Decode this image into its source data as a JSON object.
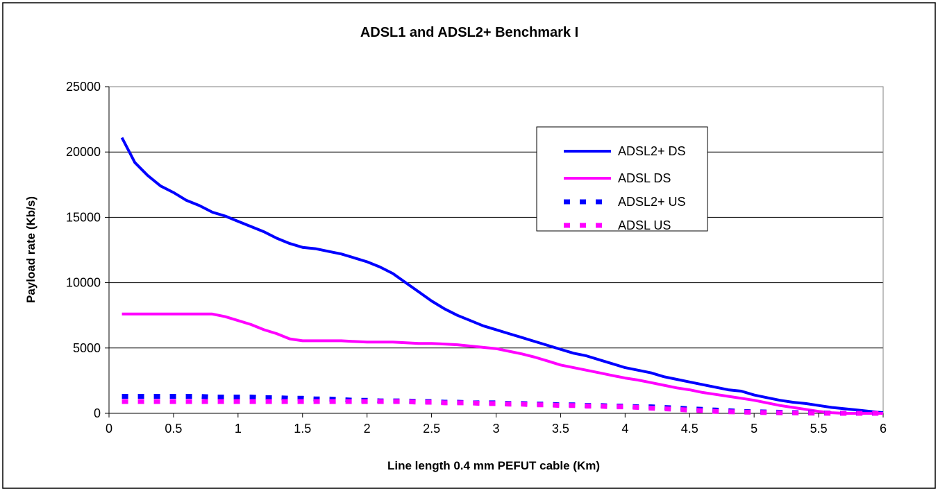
{
  "chart_data": {
    "type": "line",
    "title": "ADSL1 and ADSL2+ Benchmark I",
    "xlabel": "Line length 0.4 mm PEFUT cable (Km)",
    "ylabel": "Payload rate (Kb/s)",
    "xlim": [
      0,
      6
    ],
    "ylim": [
      0,
      25000
    ],
    "xticks": [
      0,
      0.5,
      1,
      1.5,
      2,
      2.5,
      3,
      3.5,
      4,
      4.5,
      5,
      5.5,
      6
    ],
    "xtick_labels": [
      "0",
      "0.5",
      "1",
      "1.5",
      "2",
      "2.5",
      "3",
      "3.5",
      "4",
      "4.5",
      "5",
      "5.5",
      "6"
    ],
    "yticks": [
      0,
      5000,
      10000,
      15000,
      20000,
      25000
    ],
    "ytick_labels": [
      "0",
      "5000",
      "10000",
      "15000",
      "20000",
      "25000"
    ],
    "grid": "horizontal",
    "legend_position": "top-right",
    "x": [
      0.1,
      0.2,
      0.3,
      0.4,
      0.5,
      0.6,
      0.7,
      0.8,
      0.9,
      1.0,
      1.1,
      1.2,
      1.3,
      1.4,
      1.5,
      1.6,
      1.7,
      1.8,
      1.9,
      2.0,
      2.1,
      2.2,
      2.3,
      2.4,
      2.5,
      2.6,
      2.7,
      2.8,
      2.9,
      3.0,
      3.1,
      3.2,
      3.3,
      3.4,
      3.5,
      3.6,
      3.7,
      3.8,
      3.9,
      4.0,
      4.1,
      4.2,
      4.3,
      4.4,
      4.5,
      4.6,
      4.7,
      4.8,
      4.9,
      5.0,
      5.1,
      5.2,
      5.3,
      5.4,
      5.5,
      5.6,
      5.7,
      5.8,
      5.9,
      6.0
    ],
    "series": [
      {
        "name": "ADSL2+ DS",
        "color": "#0000ff",
        "style": "solid",
        "values": [
          21100,
          19200,
          18200,
          17400,
          16900,
          16300,
          15900,
          15400,
          15100,
          14700,
          14300,
          13900,
          13400,
          13000,
          12700,
          12600,
          12400,
          12200,
          11900,
          11600,
          11200,
          10700,
          10000,
          9300,
          8600,
          8000,
          7500,
          7100,
          6700,
          6400,
          6100,
          5800,
          5500,
          5200,
          4900,
          4600,
          4400,
          4100,
          3800,
          3500,
          3300,
          3100,
          2800,
          2600,
          2400,
          2200,
          2000,
          1800,
          1700,
          1400,
          1200,
          1000,
          850,
          750,
          600,
          450,
          350,
          250,
          150,
          50
        ]
      },
      {
        "name": "ADSL DS",
        "color": "#ff00ff",
        "style": "solid",
        "values": [
          7600,
          7600,
          7600,
          7600,
          7600,
          7600,
          7600,
          7600,
          7400,
          7100,
          6800,
          6400,
          6100,
          5700,
          5550,
          5550,
          5550,
          5550,
          5500,
          5450,
          5450,
          5450,
          5400,
          5350,
          5350,
          5300,
          5250,
          5150,
          5050,
          4950,
          4750,
          4550,
          4300,
          4000,
          3700,
          3500,
          3300,
          3100,
          2900,
          2700,
          2550,
          2350,
          2150,
          1950,
          1800,
          1600,
          1450,
          1300,
          1150,
          1000,
          800,
          600,
          450,
          300,
          150,
          50,
          0,
          0,
          0,
          0
        ]
      },
      {
        "name": "ADSL2+ US",
        "color": "#0000ff",
        "style": "dashed",
        "values": [
          1300,
          1300,
          1300,
          1300,
          1300,
          1300,
          1300,
          1250,
          1250,
          1250,
          1250,
          1200,
          1200,
          1150,
          1150,
          1100,
          1100,
          1050,
          1000,
          1000,
          950,
          950,
          950,
          900,
          900,
          850,
          850,
          800,
          800,
          800,
          750,
          750,
          700,
          700,
          650,
          650,
          600,
          600,
          550,
          550,
          500,
          500,
          450,
          400,
          350,
          300,
          250,
          200,
          150,
          120,
          100,
          80,
          60,
          40,
          30,
          20,
          10,
          5,
          0,
          0
        ]
      },
      {
        "name": "ADSL US",
        "color": "#ff00ff",
        "style": "dashed",
        "values": [
          900,
          900,
          900,
          900,
          900,
          900,
          900,
          900,
          900,
          900,
          900,
          900,
          900,
          900,
          900,
          900,
          900,
          900,
          900,
          900,
          900,
          900,
          900,
          850,
          850,
          800,
          800,
          800,
          750,
          750,
          700,
          700,
          650,
          650,
          600,
          600,
          550,
          550,
          500,
          500,
          450,
          400,
          350,
          300,
          250,
          200,
          150,
          120,
          100,
          80,
          60,
          40,
          30,
          20,
          10,
          5,
          0,
          0,
          0,
          0
        ]
      }
    ]
  }
}
